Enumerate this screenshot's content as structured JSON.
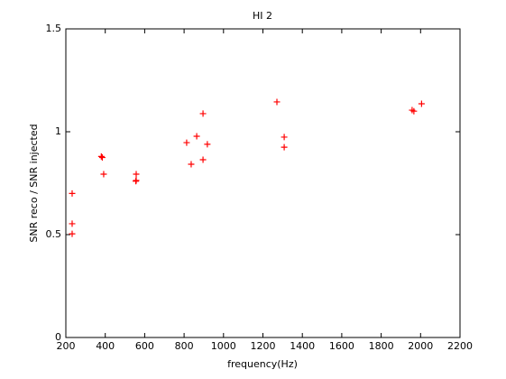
{
  "chart_data": {
    "type": "scatter",
    "title": "HI 2",
    "xlabel": "frequency(Hz)",
    "ylabel": "SNR reco / SNR injected",
    "color": "#ff0000",
    "marker": "+",
    "x": [
      232,
      232,
      232,
      380,
      385,
      392,
      557,
      557,
      555,
      813,
      836,
      864,
      896,
      896,
      918,
      1271,
      1308,
      1308,
      1957,
      1966,
      2005
    ],
    "y": [
      0.7,
      0.553,
      0.504,
      0.88,
      0.875,
      0.794,
      0.794,
      0.763,
      0.76,
      0.947,
      0.842,
      0.978,
      1.088,
      0.864,
      0.939,
      1.145,
      0.974,
      0.925,
      1.105,
      1.1,
      1.136
    ],
    "xlim": [
      200,
      2200
    ],
    "ylim": [
      0,
      1.5
    ],
    "xticks": [
      200,
      400,
      600,
      800,
      1000,
      1200,
      1400,
      1600,
      1800,
      2000,
      2200
    ],
    "yticks": [
      0,
      0.5,
      1,
      1.5
    ]
  }
}
